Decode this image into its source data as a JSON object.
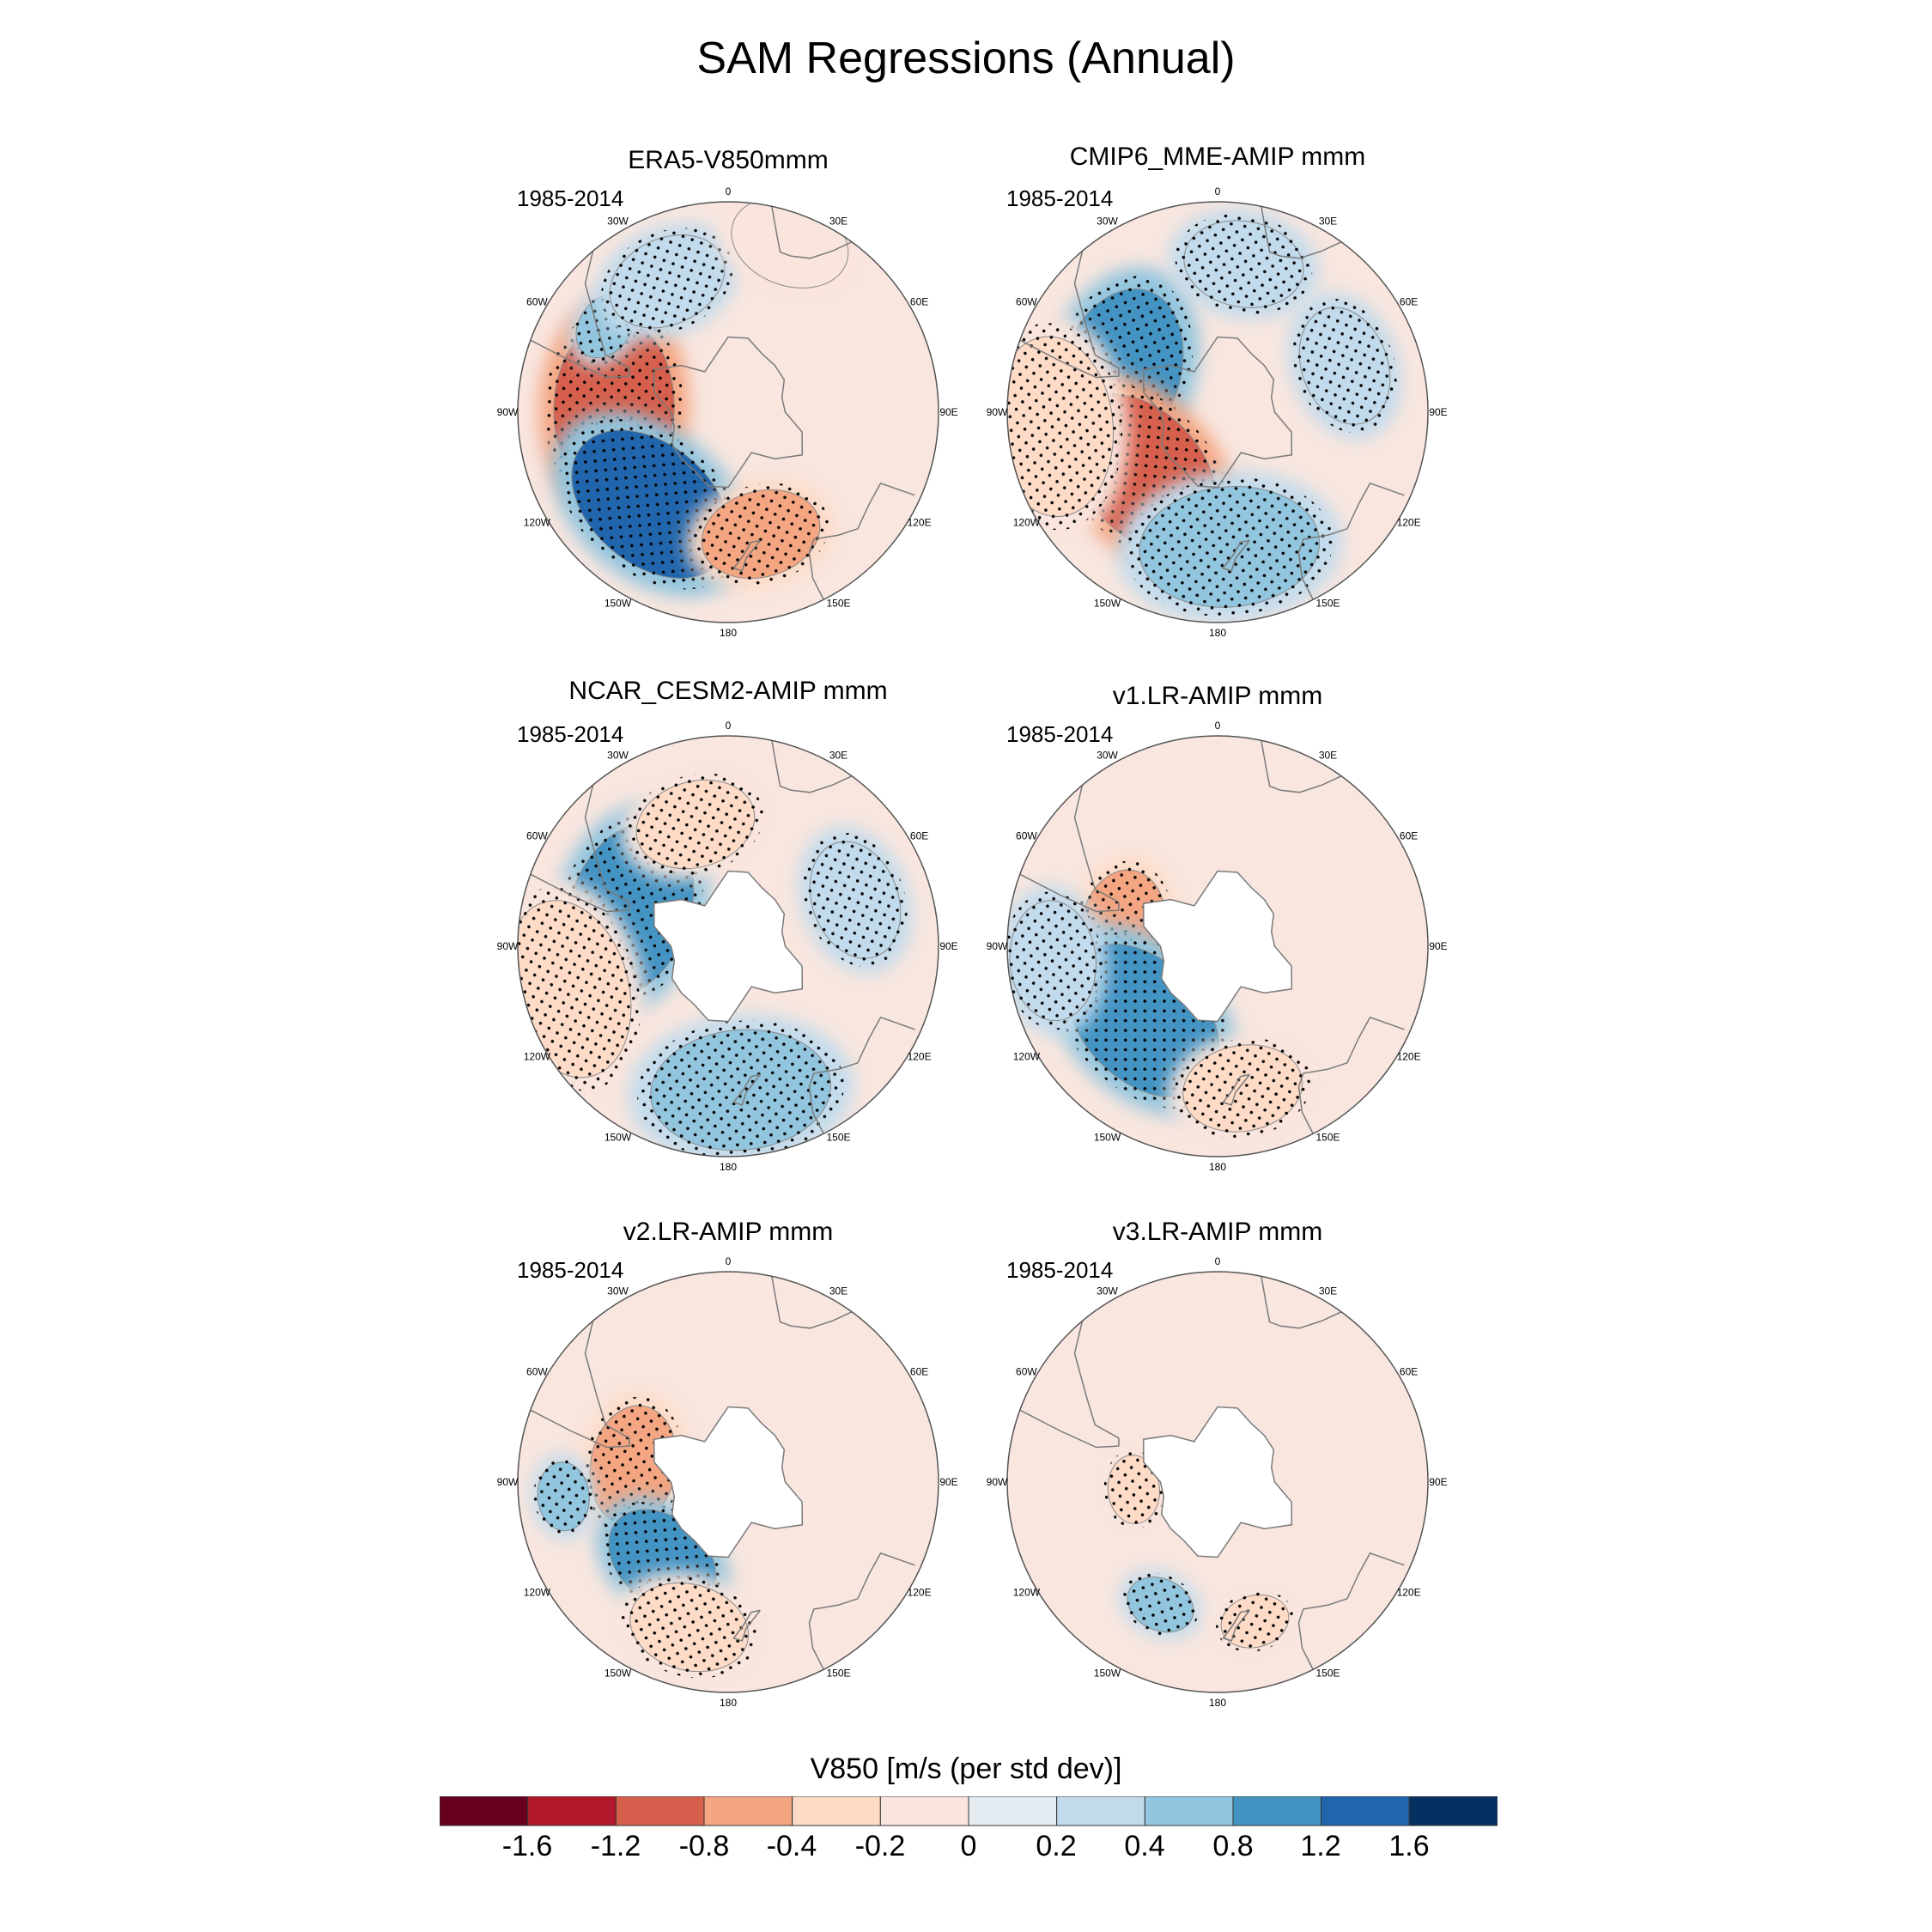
{
  "title": "SAM Regressions (Annual)",
  "panels": [
    {
      "id": "era5",
      "title": "ERA5-V850mmm",
      "period": "1985-2014",
      "antarctica_masked": false,
      "features": [
        {
          "value": -1.2,
          "lon": -88,
          "lat": -52,
          "size": "large",
          "stippled": true
        },
        {
          "value": 1.2,
          "lon": -140,
          "lat": -50,
          "size": "large",
          "stippled": true
        },
        {
          "value": -0.8,
          "lon": 165,
          "lat": -48,
          "size": "medium",
          "stippled": true
        },
        {
          "value": 0.4,
          "lon": -55,
          "lat": -40,
          "size": "small",
          "stippled": true
        },
        {
          "value": 0.2,
          "lon": -25,
          "lat": -42,
          "size": "medium",
          "stippled": true
        },
        {
          "value": -0.2,
          "lon": 20,
          "lat": -30,
          "size": "medium",
          "stippled": false
        }
      ]
    },
    {
      "id": "cmip6",
      "title": "CMIP6_MME-AMIP  mmm",
      "period": "1985-2014",
      "antarctica_masked": false,
      "features": [
        {
          "value": 0.8,
          "lon": -70,
          "lat": -55,
          "size": "large",
          "stippled": true
        },
        {
          "value": -1.2,
          "lon": -130,
          "lat": -58,
          "size": "large",
          "stippled": true
        },
        {
          "value": 0.4,
          "lon": 175,
          "lat": -45,
          "size": "large",
          "stippled": true
        },
        {
          "value": -0.4,
          "lon": -95,
          "lat": -35,
          "size": "large",
          "stippled": true
        },
        {
          "value": 0.2,
          "lon": 70,
          "lat": -45,
          "size": "medium",
          "stippled": true
        },
        {
          "value": 0.2,
          "lon": 10,
          "lat": -40,
          "size": "medium",
          "stippled": true
        }
      ]
    },
    {
      "id": "cesm2",
      "title": "NCAR_CESM2-AMIP  mmm",
      "period": "1985-2014",
      "antarctica_masked": true,
      "features": [
        {
          "value": 0.8,
          "lon": -70,
          "lat": -55,
          "size": "large",
          "stippled": true
        },
        {
          "value": -0.4,
          "lon": -15,
          "lat": -48,
          "size": "medium",
          "stippled": true
        },
        {
          "value": -0.4,
          "lon": -105,
          "lat": -35,
          "size": "large",
          "stippled": true
        },
        {
          "value": 0.4,
          "lon": 175,
          "lat": -42,
          "size": "large",
          "stippled": true
        },
        {
          "value": 0.2,
          "lon": 70,
          "lat": -45,
          "size": "medium",
          "stippled": true
        }
      ]
    },
    {
      "id": "v1",
      "title": "v1.LR-AMIP  mmm",
      "period": "1985-2014",
      "antarctica_masked": true,
      "features": [
        {
          "value": -0.8,
          "lon": -80,
          "lat": -58,
          "size": "medium",
          "stippled": true
        },
        {
          "value": 0.8,
          "lon": -135,
          "lat": -55,
          "size": "large",
          "stippled": true
        },
        {
          "value": -0.4,
          "lon": 170,
          "lat": -42,
          "size": "medium",
          "stippled": true
        },
        {
          "value": 0.2,
          "lon": -95,
          "lat": -35,
          "size": "medium",
          "stippled": true
        }
      ]
    },
    {
      "id": "v2",
      "title": "v2.LR-AMIP  mmm",
      "period": "1985-2014",
      "antarctica_masked": true,
      "features": [
        {
          "value": -0.8,
          "lon": -80,
          "lat": -58,
          "size": "medium",
          "stippled": true
        },
        {
          "value": 0.8,
          "lon": -140,
          "lat": -56,
          "size": "medium",
          "stippled": true
        },
        {
          "value": -0.4,
          "lon": -165,
          "lat": -40,
          "size": "medium",
          "stippled": true
        },
        {
          "value": 0.4,
          "lon": -95,
          "lat": -35,
          "size": "small",
          "stippled": true
        }
      ]
    },
    {
      "id": "v3",
      "title": "v3.LR-AMIP  mmm",
      "period": "1985-2014",
      "antarctica_masked": true,
      "features": [
        {
          "value": -0.4,
          "lon": -95,
          "lat": -62,
          "size": "small",
          "stippled": true
        },
        {
          "value": 0.4,
          "lon": -155,
          "lat": -45,
          "size": "small",
          "stippled": true
        },
        {
          "value": -0.4,
          "lon": 165,
          "lat": -42,
          "size": "small",
          "stippled": true
        }
      ]
    }
  ],
  "longitude_labels": [
    {
      "lon": 0,
      "label": "0"
    },
    {
      "lon": 30,
      "label": "30E"
    },
    {
      "lon": 60,
      "label": "60E"
    },
    {
      "lon": 90,
      "label": "90E"
    },
    {
      "lon": 120,
      "label": "120E"
    },
    {
      "lon": 150,
      "label": "150E"
    },
    {
      "lon": 180,
      "label": "180"
    },
    {
      "lon": -150,
      "label": "150W"
    },
    {
      "lon": -120,
      "label": "120W"
    },
    {
      "lon": -90,
      "label": "90W"
    },
    {
      "lon": -60,
      "label": "60W"
    },
    {
      "lon": -30,
      "label": "30W"
    }
  ],
  "colorbar": {
    "label": "V850 [m/s (per std dev)]",
    "tick_labels": [
      "-1.6",
      "-1.2",
      "-0.8",
      "-0.4",
      "-0.2",
      "0",
      "0.2",
      "0.4",
      "0.8",
      "1.2",
      "1.6"
    ],
    "levels": [
      -1.6,
      -1.2,
      -0.8,
      -0.4,
      -0.2,
      0,
      0.2,
      0.4,
      0.8,
      1.2,
      1.6
    ],
    "colors": [
      "#67001f",
      "#b2182b",
      "#d6604d",
      "#f4a582",
      "#fddbc7",
      "#f9e5dd",
      "#e4ecf2",
      "#c2dbec",
      "#92c5de",
      "#4393c3",
      "#2166ac",
      "#053061"
    ]
  },
  "style": {
    "ocean_background": "#f8e6df",
    "land_outline": "#7a7a7a",
    "masked_land": "#ffffff"
  }
}
